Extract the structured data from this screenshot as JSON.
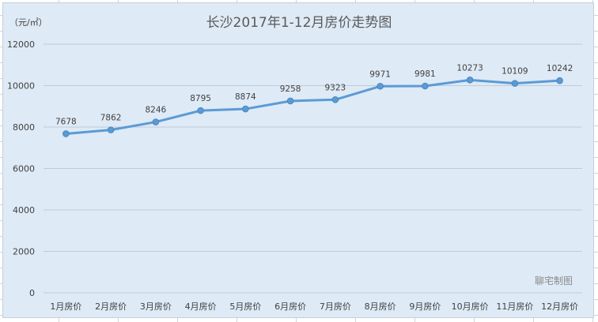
{
  "chart_data": {
    "type": "line",
    "title": "长沙2017年1-12月房价走势图",
    "unit_label": "（元/㎡）",
    "categories": [
      "1月房价",
      "2月房价",
      "3月房价",
      "4月房价",
      "5月房价",
      "6月房价",
      "7月房价",
      "8月房价",
      "9月房价",
      "10月房价",
      "11月房价",
      "12月房价"
    ],
    "series": [
      {
        "values": [
          7678,
          7862,
          8246,
          8795,
          8874,
          9258,
          9323,
          9971,
          9981,
          10273,
          10109,
          10242
        ]
      }
    ],
    "ylim": [
      0,
      12000
    ],
    "yticks": [
      0,
      2000,
      4000,
      6000,
      8000,
      10000,
      12000
    ],
    "grid": true,
    "legend": "none",
    "data_labels": true,
    "line_color": "#5b9bd5",
    "watermark": "聊宅制图"
  }
}
